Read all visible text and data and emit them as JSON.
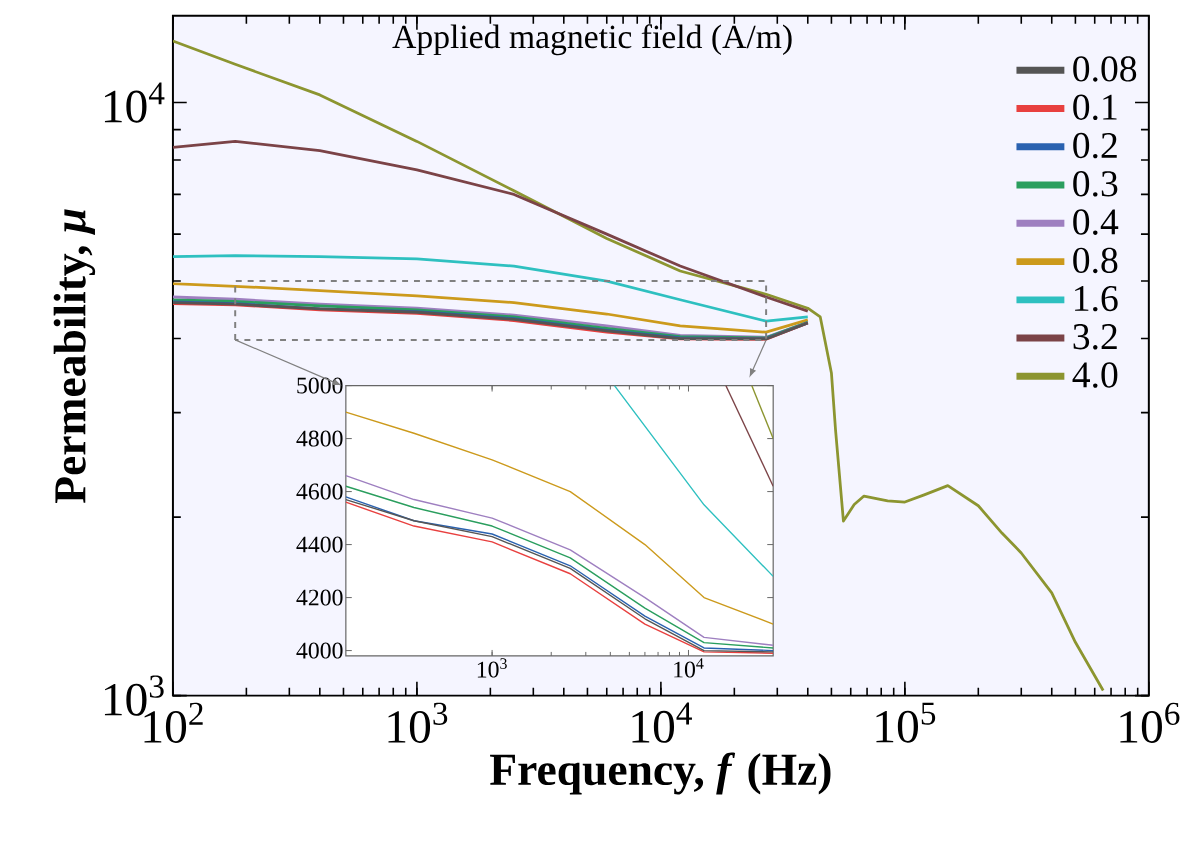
{
  "chart_data": [
    {
      "type": "line",
      "xlabel": "Frequency, *f* (Hz)",
      "ylabel": "Permeability, *μ*",
      "legend_title": "Applied magnetic field (A/m)",
      "legend": "top right",
      "log": "xy",
      "xlim": [
        100,
        1000000
      ],
      "ylim": [
        1000,
        14000
      ],
      "xticks": [
        {
          "value": 100,
          "label": "10$^{2}$"
        },
        {
          "value": 1000,
          "label": "10$^{3}$"
        },
        {
          "value": 10000,
          "label": "10$^{4}$"
        },
        {
          "value": 100000,
          "label": "10$^{5}$"
        },
        {
          "value": 1000000,
          "label": "10$^{6}$"
        }
      ],
      "yticks": [
        {
          "value": 1000,
          "label": "10$^{3}$"
        },
        {
          "value": 10000,
          "label": "10$^{4}$"
        }
      ],
      "x": [
        100,
        180,
        400,
        1000,
        2500,
        6000,
        12000,
        27000,
        40000,
        45000,
        50000,
        52000,
        56000,
        62000,
        68000,
        85000,
        100000,
        120000,
        150000,
        200000,
        250000,
        300000,
        400000,
        500000,
        650000
      ],
      "series": [
        {
          "name": "0.08",
          "color": "#555555",
          "values": [
            4600,
            4570,
            4490,
            4430,
            4310,
            4120,
            4000,
            3995,
            4250,
            null,
            null,
            null,
            null,
            null,
            null,
            null,
            null,
            null,
            null,
            null,
            null,
            null,
            null,
            null,
            null
          ]
        },
        {
          "name": "0.1",
          "color": "#e8403f",
          "values": [
            4580,
            4560,
            4470,
            4410,
            4290,
            4100,
            3995,
            3990,
            4250,
            null,
            null,
            null,
            null,
            null,
            null,
            null,
            null,
            null,
            null,
            null,
            null,
            null,
            null,
            null,
            null
          ]
        },
        {
          "name": "0.2",
          "color": "#2a62b0",
          "values": [
            4610,
            4580,
            4490,
            4440,
            4320,
            4130,
            4010,
            4000,
            4250,
            null,
            null,
            null,
            null,
            null,
            null,
            null,
            null,
            null,
            null,
            null,
            null,
            null,
            null,
            null,
            null
          ]
        },
        {
          "name": "0.3",
          "color": "#2a9e5e",
          "values": [
            4650,
            4620,
            4540,
            4470,
            4350,
            4160,
            4030,
            4010,
            4260,
            null,
            null,
            null,
            null,
            null,
            null,
            null,
            null,
            null,
            null,
            null,
            null,
            null,
            null,
            null,
            null
          ]
        },
        {
          "name": "0.4",
          "color": "#9e7fc0",
          "values": [
            4700,
            4660,
            4570,
            4500,
            4380,
            4200,
            4050,
            4020,
            4260,
            null,
            null,
            null,
            null,
            null,
            null,
            null,
            null,
            null,
            null,
            null,
            null,
            null,
            null,
            null,
            null
          ]
        },
        {
          "name": "0.8",
          "color": "#cc9a1c",
          "values": [
            4950,
            4900,
            4820,
            4720,
            4600,
            4400,
            4200,
            4100,
            4300,
            null,
            null,
            null,
            null,
            null,
            null,
            null,
            null,
            null,
            null,
            null,
            null,
            null,
            null,
            null,
            null
          ]
        },
        {
          "name": "1.6",
          "color": "#2ec0c0",
          "values": [
            5500,
            5520,
            5500,
            5450,
            5300,
            5000,
            4650,
            4280,
            4350,
            null,
            null,
            null,
            null,
            null,
            null,
            null,
            null,
            null,
            null,
            null,
            null,
            null,
            null,
            null,
            null
          ]
        },
        {
          "name": "3.2",
          "color": "#7b4347",
          "values": [
            8400,
            8600,
            8300,
            7700,
            7000,
            6000,
            5300,
            4700,
            4450,
            null,
            null,
            null,
            null,
            null,
            null,
            null,
            null,
            null,
            null,
            null,
            null,
            null,
            null,
            null,
            null
          ]
        },
        {
          "name": "4.0",
          "color": "#8c9530",
          "values": [
            12700,
            11600,
            10300,
            8600,
            7100,
            5900,
            5200,
            4750,
            4500,
            4350,
            3500,
            2800,
            1970,
            2100,
            2170,
            2130,
            2120,
            2180,
            2260,
            2090,
            1880,
            1740,
            1490,
            1230,
            1020
          ]
        }
      ]
    },
    {
      "type": "line",
      "log": "x",
      "xlim": [
        180,
        27000
      ],
      "ylim": [
        3980,
        5000
      ],
      "xticks": [
        {
          "value": 1000,
          "label": "10$^{3}$"
        },
        {
          "value": 10000,
          "label": "10$^{4}$"
        }
      ],
      "yticks": [
        4000,
        4200,
        4400,
        4600,
        4800,
        5000
      ],
      "x": [
        180,
        400,
        1000,
        2500,
        6000,
        12000,
        27000
      ],
      "series": [
        {
          "color": "#555555",
          "values": [
            4570,
            4490,
            4430,
            4310,
            4120,
            4000,
            3995
          ]
        },
        {
          "color": "#e8403f",
          "values": [
            4560,
            4470,
            4410,
            4290,
            4100,
            3995,
            3990
          ]
        },
        {
          "color": "#2a62b0",
          "values": [
            4580,
            4490,
            4440,
            4320,
            4130,
            4010,
            4000
          ]
        },
        {
          "color": "#2a9e5e",
          "values": [
            4620,
            4540,
            4470,
            4350,
            4160,
            4030,
            4010
          ]
        },
        {
          "color": "#9e7fc0",
          "values": [
            4660,
            4570,
            4500,
            4380,
            4200,
            4050,
            4020
          ]
        },
        {
          "color": "#cc9a1c",
          "values": [
            4900,
            4820,
            4720,
            4600,
            4400,
            4200,
            4100
          ]
        },
        {
          "color": "#2ec0c0",
          "x": [
            4200,
            12000,
            27000
          ],
          "values": [
            5000,
            4550,
            4280
          ]
        },
        {
          "color": "#7b4347",
          "x": [
            15500,
            27000
          ],
          "values": [
            5000,
            4620
          ]
        },
        {
          "color": "#8c9530",
          "x": [
            21000,
            27000
          ],
          "values": [
            5000,
            4800
          ]
        }
      ]
    }
  ]
}
